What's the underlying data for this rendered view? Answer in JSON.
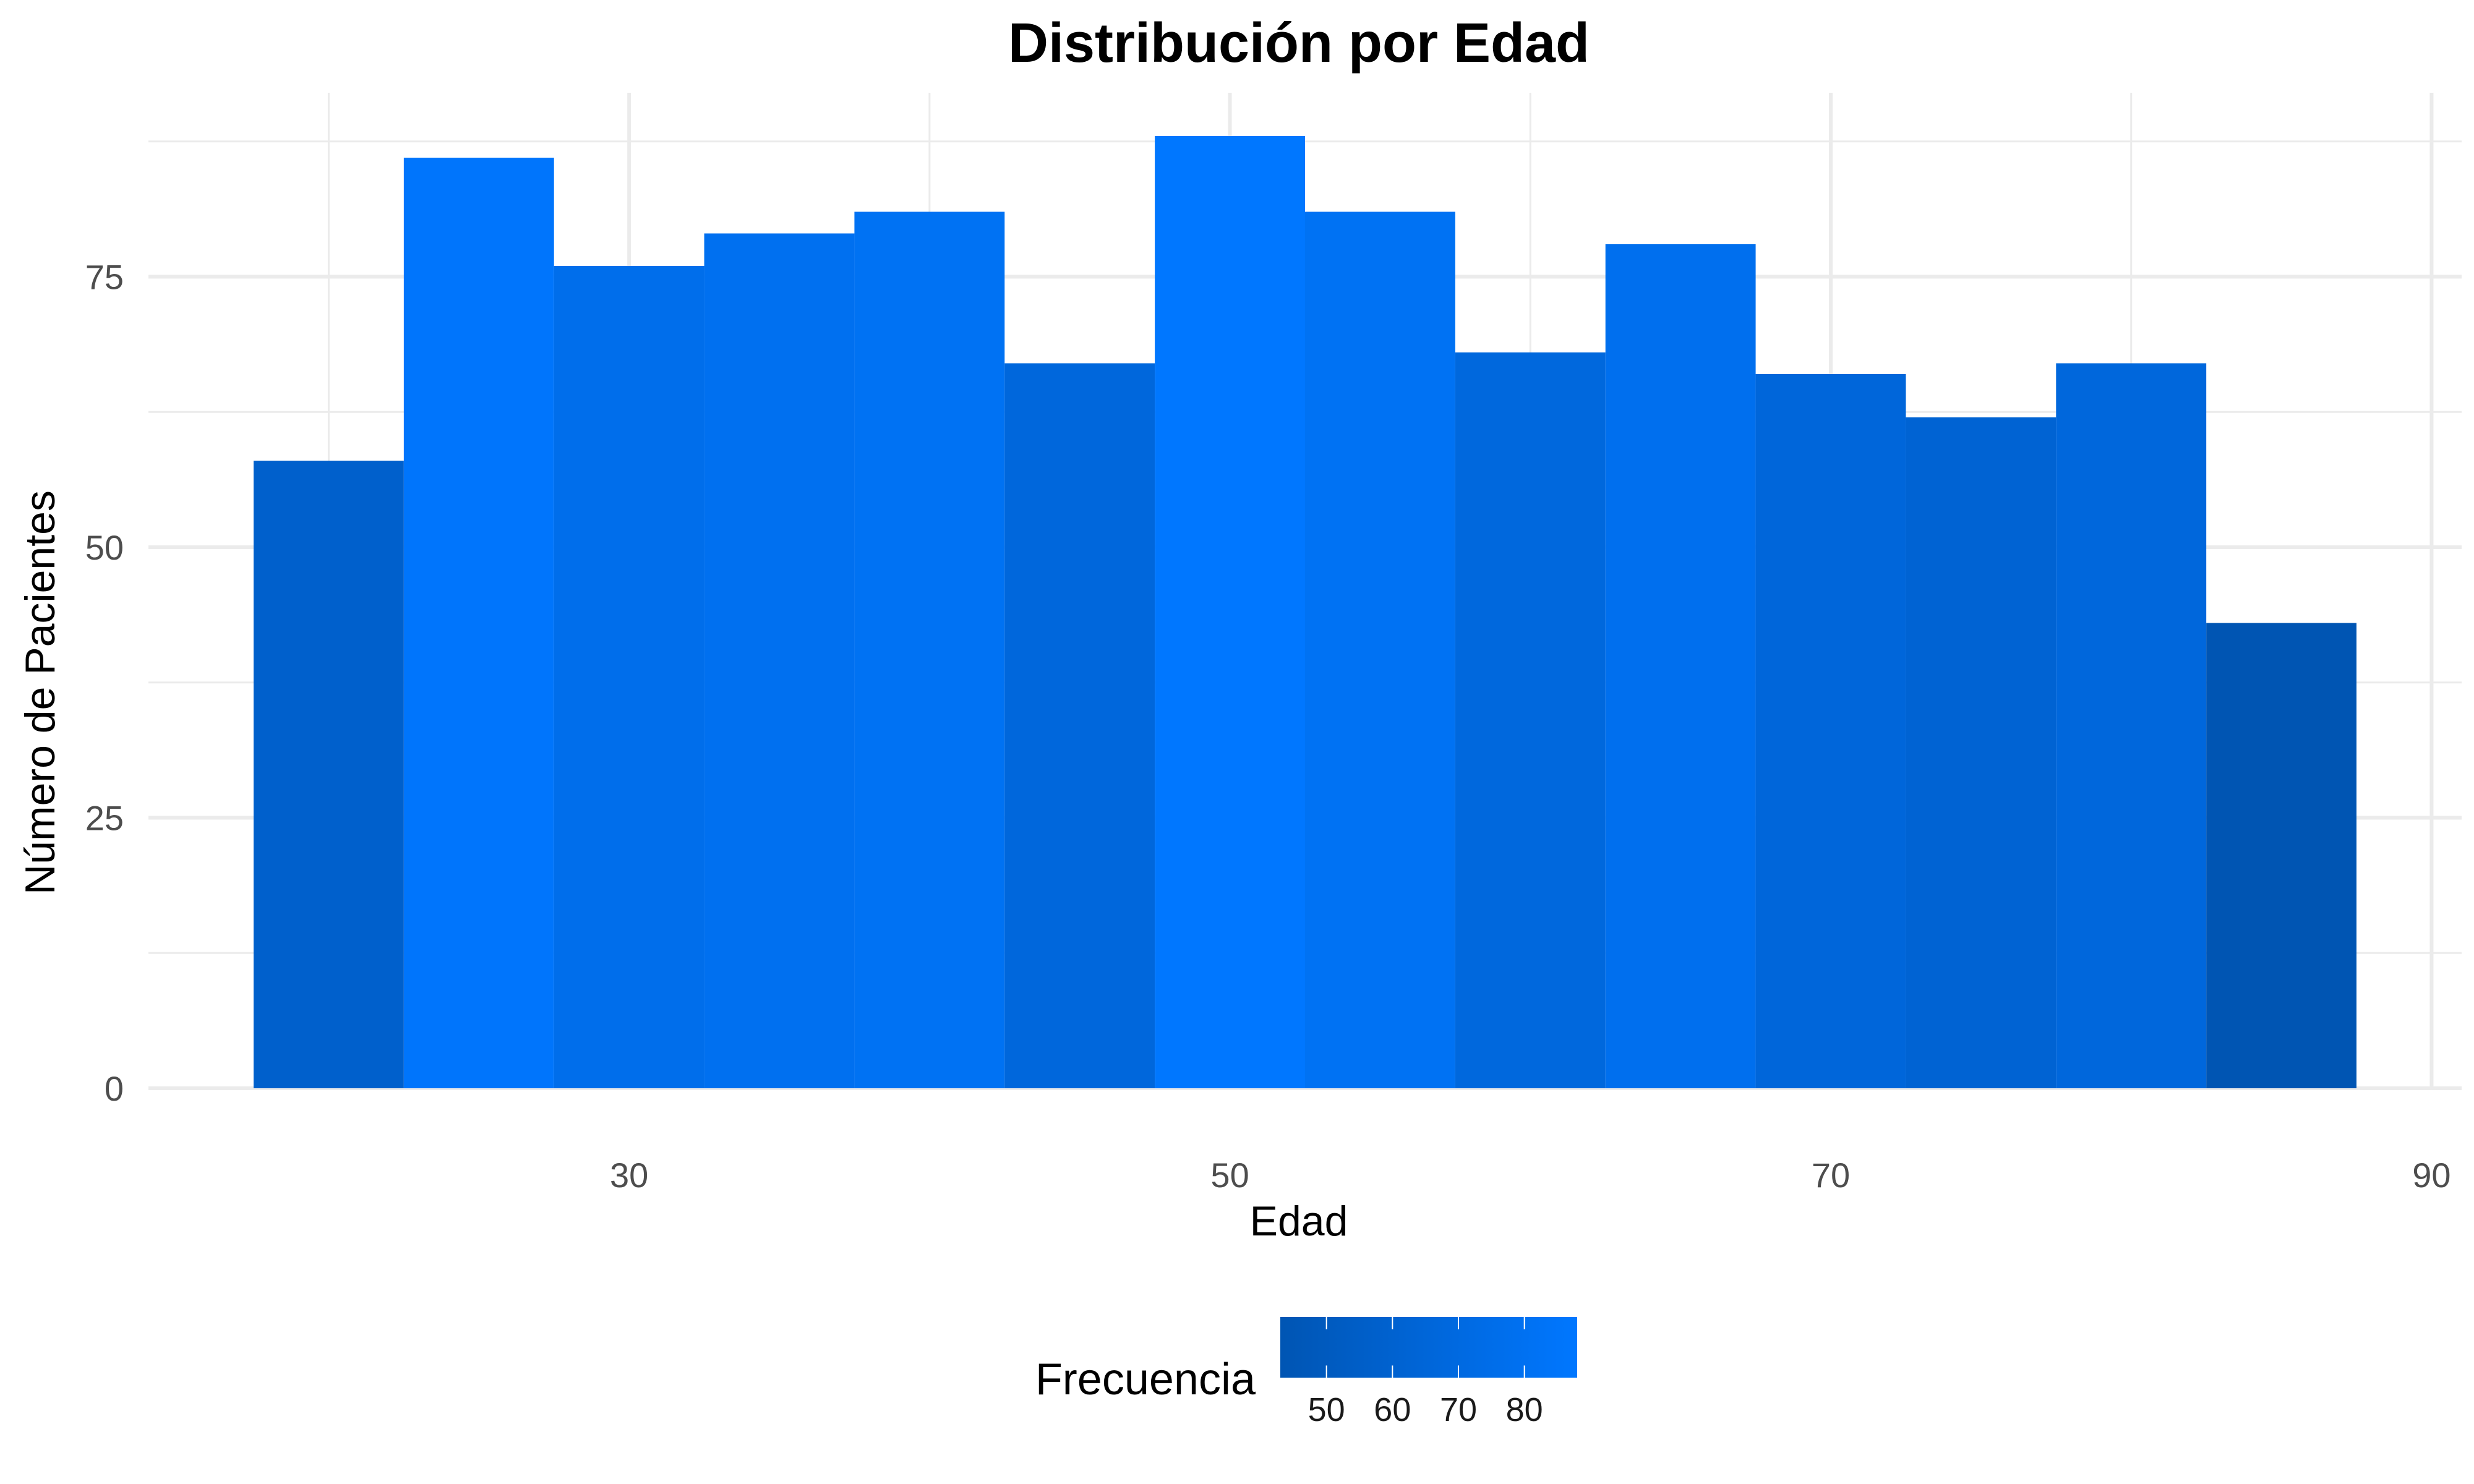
{
  "chart_data": {
    "type": "bar",
    "title": "Distribución por Edad",
    "xlabel": "Edad",
    "ylabel": "Número de Pacientes",
    "bins": [
      {
        "x0": 17.5,
        "x1": 22.5,
        "value": 58
      },
      {
        "x0": 22.5,
        "x1": 27.5,
        "value": 86
      },
      {
        "x0": 27.5,
        "x1": 32.5,
        "value": 76
      },
      {
        "x0": 32.5,
        "x1": 37.5,
        "value": 79
      },
      {
        "x0": 37.5,
        "x1": 42.5,
        "value": 81
      },
      {
        "x0": 42.5,
        "x1": 47.5,
        "value": 67
      },
      {
        "x0": 47.5,
        "x1": 52.5,
        "value": 88
      },
      {
        "x0": 52.5,
        "x1": 57.5,
        "value": 81
      },
      {
        "x0": 57.5,
        "x1": 62.5,
        "value": 68
      },
      {
        "x0": 62.5,
        "x1": 67.5,
        "value": 78
      },
      {
        "x0": 67.5,
        "x1": 72.5,
        "value": 66
      },
      {
        "x0": 72.5,
        "x1": 77.5,
        "value": 62
      },
      {
        "x0": 77.5,
        "x1": 82.5,
        "value": 67
      },
      {
        "x0": 82.5,
        "x1": 87.5,
        "value": 43
      }
    ],
    "xlim": [
      14,
      91
    ],
    "ylim": [
      0,
      92
    ],
    "x_ticks": [
      30,
      50,
      70,
      90
    ],
    "y_ticks": [
      0,
      25,
      50,
      75
    ],
    "grid": true,
    "fill_scale": {
      "title": "Frecuencia",
      "min": 43,
      "max": 88,
      "low_color": "#0055B3",
      "high_color": "#0077FF",
      "ticks": [
        50,
        60,
        70,
        80
      ]
    },
    "legend_position": "bottom"
  }
}
